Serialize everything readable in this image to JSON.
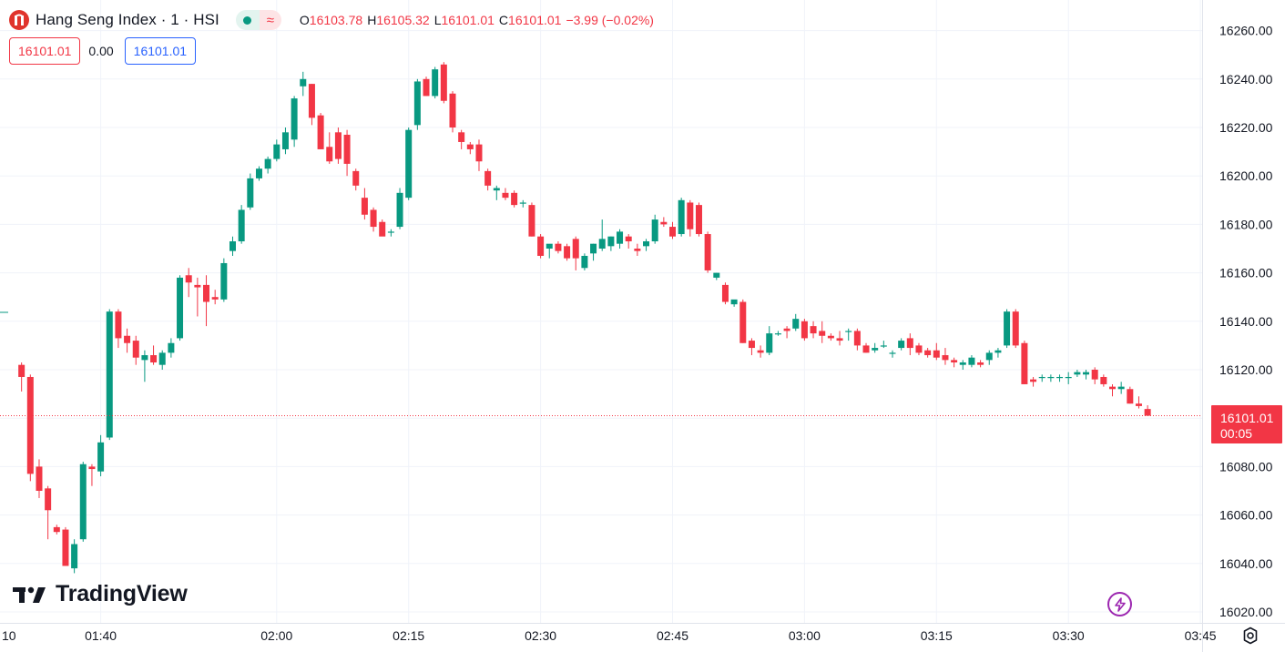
{
  "legend": {
    "symbol_title": "Hang Seng Index · 1 · HSI",
    "status_icon": "market-open-dot",
    "delay_icon": "approx-delay-icon",
    "ohlc": [
      {
        "label": "O",
        "value": "16103.78"
      },
      {
        "label": "H",
        "value": "16105.32"
      },
      {
        "label": "L",
        "value": "16101.01"
      },
      {
        "label": "C",
        "value": "16101.01"
      }
    ],
    "change": "−3.99 (−0.02%)"
  },
  "trade": {
    "sell_price": "16101.01",
    "spread": "0.00",
    "buy_price": "16101.01"
  },
  "last_price_tag": {
    "price": "16101.01",
    "countdown": "00:05"
  },
  "watermark": "TradingView",
  "colors": {
    "up": "#089981",
    "down": "#f23645",
    "grid": "#f0f3fa",
    "text": "#131722",
    "buy": "#2962ff",
    "accent": "#9c27b0"
  },
  "chart_data": {
    "type": "candlestick",
    "symbol": "HSI",
    "interval": "1",
    "y_ticks": [
      16020,
      16040,
      16060,
      16080,
      16100,
      16120,
      16140,
      16160,
      16180,
      16200,
      16220,
      16240,
      16260
    ],
    "y_tick_labels": [
      "16020.00",
      "16040.00",
      "16060.00",
      "16080.00",
      "16100.00",
      "16120.00",
      "16140.00",
      "16160.00",
      "16180.00",
      "16200.00",
      "16220.00",
      "16240.00",
      "16260.00"
    ],
    "x_ticks": [
      {
        "label": "10",
        "minute": 0
      },
      {
        "label": "01:40",
        "minute": 10
      },
      {
        "label": "02:00",
        "minute": 30
      },
      {
        "label": "02:15",
        "minute": 45
      },
      {
        "label": "02:30",
        "minute": 60
      },
      {
        "label": "02:45",
        "minute": 75
      },
      {
        "label": "03:00",
        "minute": 90
      },
      {
        "label": "03:15",
        "minute": 105
      },
      {
        "label": "03:30",
        "minute": 120
      },
      {
        "label": "03:45",
        "minute": 135
      }
    ],
    "ylim": [
      16020,
      16260
    ],
    "last_price": 16101.01,
    "candles": [
      [
        16122,
        16123,
        16111,
        16117
      ],
      [
        16117,
        16118,
        16074,
        16077
      ],
      [
        16080,
        16083,
        16067,
        16070
      ],
      [
        16071,
        16072,
        16050,
        16062
      ],
      [
        16055,
        16056,
        16052,
        16053
      ],
      [
        16054,
        16055,
        16039,
        16039
      ],
      [
        16038,
        16050,
        16036,
        16048
      ],
      [
        16050,
        16082,
        16049,
        16081
      ],
      [
        16080,
        16081,
        16072,
        16079
      ],
      [
        16078,
        16093,
        16076,
        16090
      ],
      [
        16092,
        16145,
        16091,
        16144
      ],
      [
        16144,
        16145,
        16129,
        16133
      ],
      [
        16134,
        16137,
        16127,
        16131
      ],
      [
        16132,
        16134,
        16122,
        16125
      ],
      [
        16124,
        16128,
        16115,
        16126
      ],
      [
        16126,
        16130,
        16122,
        16123
      ],
      [
        16122,
        16128,
        16120,
        16127
      ],
      [
        16127,
        16133,
        16125,
        16131
      ],
      [
        16133,
        16159,
        16132,
        16158
      ],
      [
        16159,
        16162,
        16150,
        16156
      ],
      [
        16155,
        16158,
        16142,
        16154
      ],
      [
        16155,
        16159,
        16138,
        16148
      ],
      [
        16150,
        16153,
        16147,
        16149
      ],
      [
        16149,
        16166,
        16148,
        16164
      ],
      [
        16169,
        16175,
        16167,
        16173
      ],
      [
        16173,
        16188,
        16172,
        16186
      ],
      [
        16187,
        16201,
        16186,
        16199
      ],
      [
        16199,
        16204,
        16198,
        16203
      ],
      [
        16203,
        16208,
        16201,
        16207
      ],
      [
        16207,
        16215,
        16206,
        16213
      ],
      [
        16211,
        16220,
        16209,
        16218
      ],
      [
        16215,
        16233,
        16212,
        16232
      ],
      [
        16237,
        16243,
        16233,
        16240
      ],
      [
        16238,
        16238,
        16221,
        16224
      ],
      [
        16225,
        16226,
        16211,
        16211
      ],
      [
        16212,
        16218,
        16205,
        16206
      ],
      [
        16218,
        16220,
        16205,
        16207
      ],
      [
        16217,
        16219,
        16200,
        16205
      ],
      [
        16202,
        16203,
        16194,
        16196
      ],
      [
        16191,
        16195,
        16182,
        16184
      ],
      [
        16186,
        16187,
        16177,
        16179
      ],
      [
        16181,
        16182,
        16176,
        16175
      ],
      [
        16177,
        16178,
        16175,
        16177
      ],
      [
        16179,
        16195,
        16178,
        16193
      ],
      [
        16191,
        16220,
        16190,
        16219
      ],
      [
        16221,
        16240,
        16219,
        16239
      ],
      [
        16240,
        16241,
        16233,
        16233
      ],
      [
        16233,
        16245,
        16232,
        16244
      ],
      [
        16246,
        16247,
        16230,
        16231
      ],
      [
        16234,
        16235,
        16218,
        16220
      ],
      [
        16218,
        16219,
        16211,
        16214
      ],
      [
        16213,
        16214,
        16209,
        16211
      ],
      [
        16213,
        16215,
        16202,
        16206
      ],
      [
        16202,
        16203,
        16194,
        16196
      ],
      [
        16194,
        16196,
        16190,
        16195
      ],
      [
        16193,
        16195,
        16190,
        16191
      ],
      [
        16193,
        16194,
        16187,
        16188
      ],
      [
        16189,
        16190,
        16187,
        16189
      ],
      [
        16188,
        16189,
        16175,
        16175
      ],
      [
        16175,
        16176,
        16166,
        16167
      ],
      [
        16170,
        16171,
        16166,
        16172
      ],
      [
        16172,
        16173,
        16168,
        16169
      ],
      [
        16171,
        16172,
        16165,
        16166
      ],
      [
        16174,
        16175,
        16161,
        16166
      ],
      [
        16162,
        16168,
        16161,
        16167
      ],
      [
        16168,
        16172,
        16165,
        16172
      ],
      [
        16170,
        16182,
        16169,
        16174
      ],
      [
        16171,
        16175,
        16169,
        16175
      ],
      [
        16172,
        16178,
        16170,
        16177
      ],
      [
        16175,
        16176,
        16170,
        16173
      ],
      [
        16170,
        16172,
        16167,
        16169
      ],
      [
        16171,
        16174,
        16169,
        16173
      ],
      [
        16173,
        16184,
        16172,
        16182
      ],
      [
        16181,
        16183,
        16179,
        16180
      ],
      [
        16179,
        16181,
        16174,
        16175
      ],
      [
        16176,
        16191,
        16175,
        16190
      ],
      [
        16189,
        16190,
        16175,
        16178
      ],
      [
        16188,
        16189,
        16175,
        16176
      ],
      [
        16176,
        16177,
        16160,
        16161
      ],
      [
        16158,
        16160,
        16157,
        16160
      ],
      [
        16155,
        16156,
        16147,
        16148
      ],
      [
        16147,
        16148,
        16146,
        16149
      ],
      [
        16148,
        16149,
        16131,
        16131
      ],
      [
        16132,
        16133,
        16126,
        16129
      ],
      [
        16128,
        16130,
        16125,
        16127
      ],
      [
        16127,
        16138,
        16126,
        16135
      ],
      [
        16135,
        16136,
        16134,
        16135
      ],
      [
        16137,
        16138,
        16133,
        16136
      ],
      [
        16137,
        16143,
        16136,
        16141
      ],
      [
        16140,
        16141,
        16132,
        16133
      ],
      [
        16138,
        16140,
        16133,
        16135
      ],
      [
        16136,
        16140,
        16131,
        16134
      ],
      [
        16134,
        16135,
        16132,
        16133
      ],
      [
        16133,
        16136,
        16130,
        16132
      ],
      [
        16136,
        16137,
        16132,
        16136
      ],
      [
        16136,
        16137,
        16128,
        16130
      ],
      [
        16130,
        16131,
        16127,
        16127
      ],
      [
        16128,
        16131,
        16127,
        16129
      ],
      [
        16130,
        16132,
        16129,
        16130
      ],
      [
        16127,
        16128,
        16125,
        16127
      ],
      [
        16129,
        16133,
        16128,
        16132
      ],
      [
        16133,
        16135,
        16126,
        16129
      ],
      [
        16130,
        16131,
        16126,
        16127
      ],
      [
        16128,
        16129,
        16125,
        16126
      ],
      [
        16128,
        16131,
        16124,
        16125
      ],
      [
        16126,
        16129,
        16122,
        16124
      ],
      [
        16124,
        16125,
        16121,
        16123
      ],
      [
        16122,
        16124,
        16120,
        16123
      ],
      [
        16122,
        16126,
        16121,
        16125
      ],
      [
        16123,
        16124,
        16121,
        16122
      ],
      [
        16124,
        16128,
        16122,
        16127
      ],
      [
        16127,
        16129,
        16125,
        16128
      ],
      [
        16130,
        16145,
        16129,
        16144
      ],
      [
        16144,
        16145,
        16129,
        16130
      ],
      [
        16131,
        16132,
        16114,
        16114
      ],
      [
        16116,
        16117,
        16113,
        16115
      ],
      [
        16117,
        16118,
        16115,
        16117
      ],
      [
        16117,
        16118,
        16115,
        16117
      ],
      [
        16117,
        16118,
        16115,
        16117
      ],
      [
        16117,
        16119,
        16114,
        16117
      ],
      [
        16118,
        16120,
        16117,
        16119
      ],
      [
        16118,
        16120,
        16116,
        16119
      ],
      [
        16120,
        16121,
        16114,
        16116
      ],
      [
        16117,
        16118,
        16113,
        16114
      ],
      [
        16113,
        16114,
        16109,
        16112
      ],
      [
        16112,
        16115,
        16110,
        16113
      ],
      [
        16112,
        16113,
        16106,
        16106
      ],
      [
        16106,
        16109,
        16104,
        16105
      ],
      [
        16103.78,
        16105.32,
        16101.01,
        16101.01
      ]
    ]
  }
}
